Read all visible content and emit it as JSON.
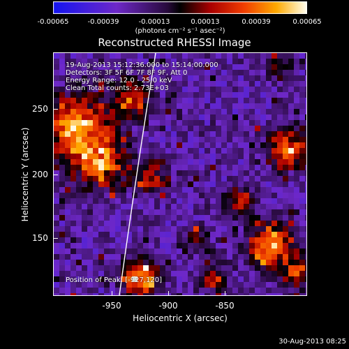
{
  "colorbar": {
    "ticks": [
      "-0.00065",
      "-0.00039",
      "-0.00013",
      "0.00013",
      "0.00039",
      "0.00065"
    ],
    "unit": "(photons cm⁻² s⁻¹ asec⁻²)"
  },
  "title": "Reconstructed RHESSI Image",
  "annotations": {
    "time": "19-Aug-2013 15:12:36.000 to 15:14:00.000",
    "detectors": "Detectors: 3F 5F 6F 7F 8F 9F, Att 0",
    "energy": "Energy Range: 12.0 - 25.0 keV",
    "clean": "Clean     Total counts: 2.73E+03",
    "peak": "Position of Peak: [-927,120]"
  },
  "axes": {
    "xlabel": "Heliocentric X (arcsec)",
    "ylabel": "Heliocentric Y (arcsec)",
    "xticks": [
      "-950",
      "-900",
      "-850"
    ],
    "yticks": [
      "250",
      "200",
      "150"
    ]
  },
  "footer": {
    "date": "30-Aug-2013 08:25"
  },
  "colors": {
    "background": "#000000",
    "frame": "#ffffff",
    "limb": "#ffffff"
  }
}
